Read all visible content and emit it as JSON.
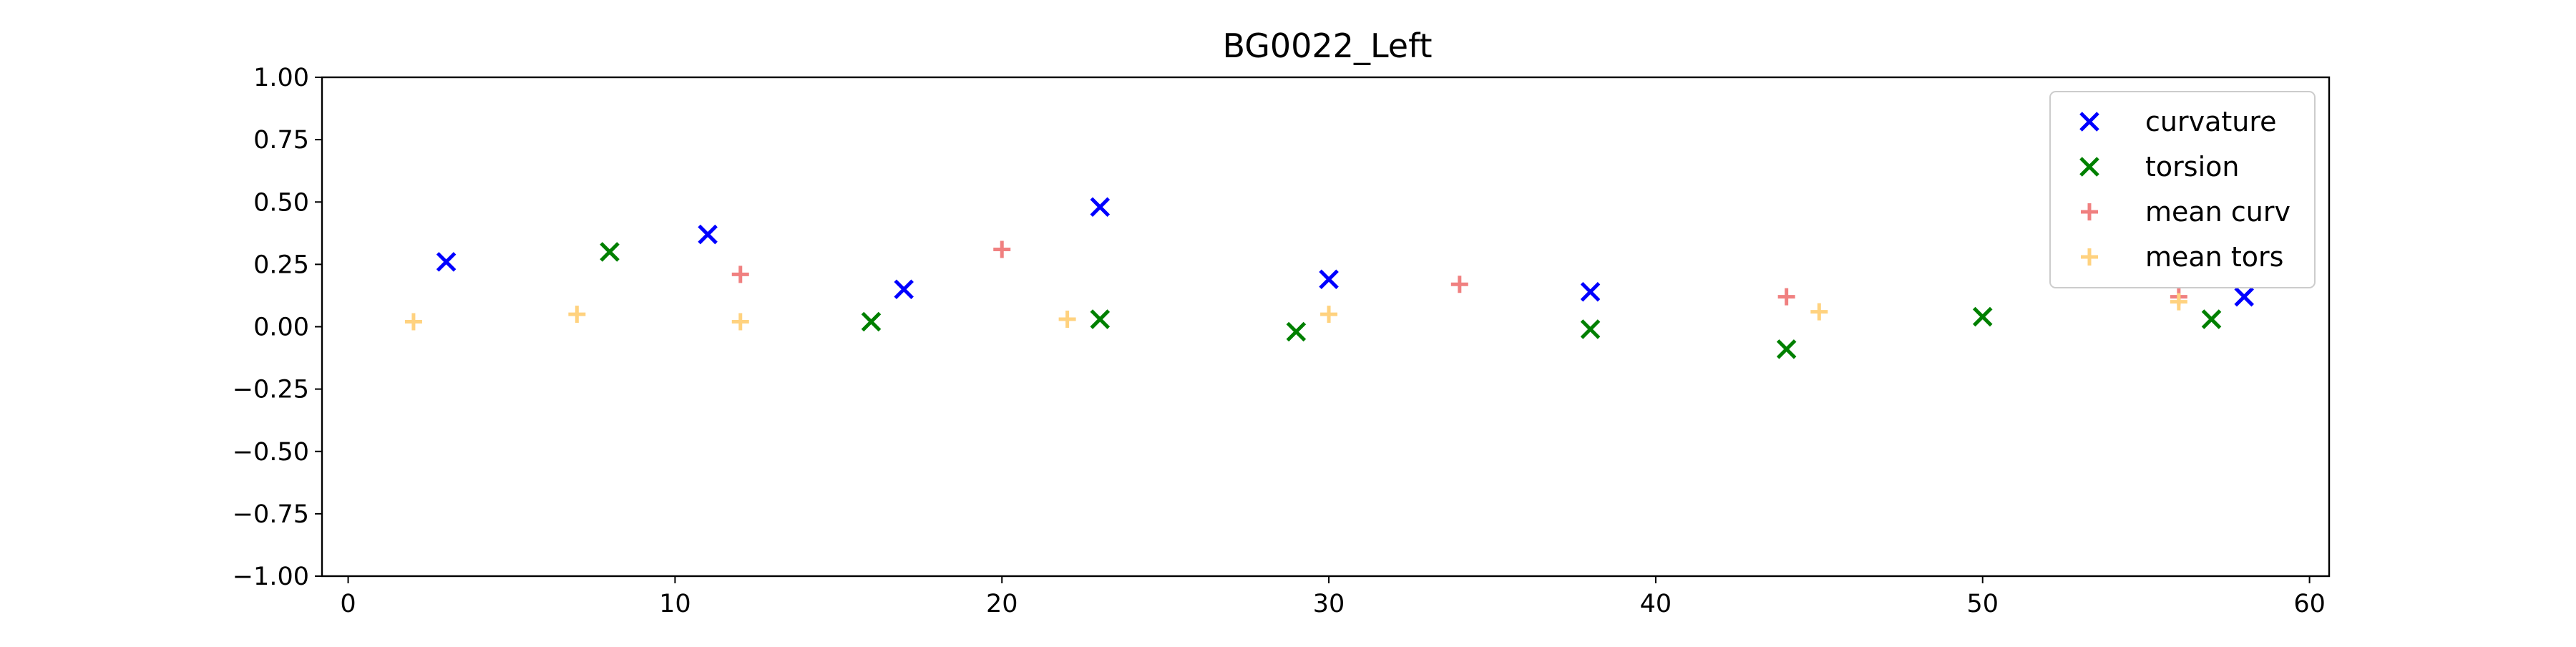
{
  "chart_data": {
    "type": "scatter",
    "title": "BG0022_Left",
    "xlabel": "",
    "ylabel": "",
    "xlim": [
      -0.8,
      60.6
    ],
    "ylim": [
      -1.0,
      1.0
    ],
    "xticks": [
      0,
      10,
      20,
      30,
      40,
      50,
      60
    ],
    "yticks": [
      -1.0,
      -0.75,
      -0.5,
      -0.25,
      0.0,
      0.25,
      0.5,
      0.75,
      1.0
    ],
    "xtick_labels": [
      "0",
      "10",
      "20",
      "30",
      "40",
      "50",
      "60"
    ],
    "ytick_labels": [
      "−1.00",
      "−0.75",
      "−0.50",
      "−0.25",
      "0.00",
      "0.25",
      "0.50",
      "0.75",
      "1.00"
    ],
    "grid": false,
    "legend_position": "top-right",
    "series": [
      {
        "name": "curvature",
        "marker": "x",
        "color": "#0000ff",
        "x": [
          3,
          11,
          17,
          23,
          30,
          38,
          58
        ],
        "y": [
          0.26,
          0.37,
          0.15,
          0.48,
          0.19,
          0.14,
          0.12
        ]
      },
      {
        "name": "torsion",
        "marker": "x",
        "color": "#008000",
        "x": [
          8,
          16,
          23,
          29,
          38,
          44,
          50,
          57
        ],
        "y": [
          0.3,
          0.02,
          0.03,
          -0.02,
          -0.01,
          -0.09,
          0.04,
          0.03
        ]
      },
      {
        "name": "mean curv",
        "marker": "+",
        "color": "#f08080",
        "x": [
          12,
          20,
          34,
          44,
          56
        ],
        "y": [
          0.21,
          0.31,
          0.17,
          0.12,
          0.12
        ]
      },
      {
        "name": "mean tors",
        "marker": "+",
        "color": "#ffd27f",
        "x": [
          2,
          7,
          12,
          22,
          30,
          45,
          56
        ],
        "y": [
          0.02,
          0.05,
          0.02,
          0.03,
          0.05,
          0.06,
          0.1
        ]
      }
    ]
  }
}
